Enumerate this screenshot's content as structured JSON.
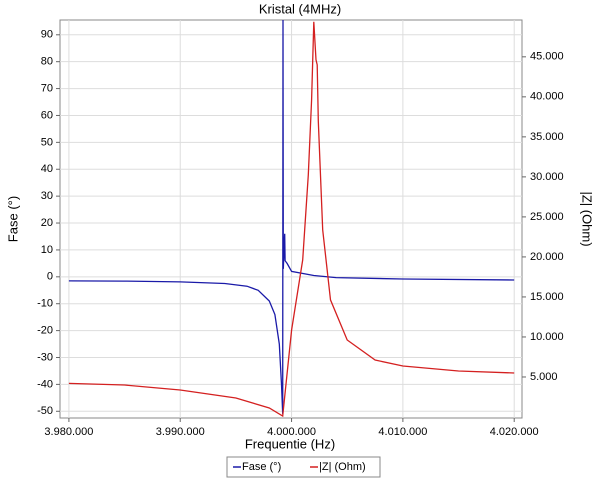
{
  "chart_data": {
    "type": "line",
    "title": "Kristal (4MHz)",
    "x_label": "Frequentie (Hz)",
    "y_label": "Fase (°)",
    "y2_label": "|Z| (Ohm)",
    "xlim": [
      3979200,
      4020700
    ],
    "xticks": [
      {
        "value": 3980000,
        "label": "3.980.000"
      },
      {
        "value": 3990000,
        "label": "3.990.000"
      },
      {
        "value": 4000000,
        "label": "4.000.000"
      },
      {
        "value": 4010000,
        "label": "4.010.000"
      },
      {
        "value": 4020000,
        "label": "4.020.000"
      }
    ],
    "ylim": [
      -52.5,
      95.5
    ],
    "yticks": [
      -50,
      -40,
      -30,
      -20,
      -10,
      0,
      10,
      20,
      30,
      40,
      50,
      60,
      70,
      80,
      90
    ],
    "y2lim": [
      -125,
      49600
    ],
    "y2ticks": [
      {
        "value": 5000,
        "label": "5.000"
      },
      {
        "value": 10000,
        "label": "10.000"
      },
      {
        "value": 15000,
        "label": "15.000"
      },
      {
        "value": 20000,
        "label": "20.000"
      },
      {
        "value": 25000,
        "label": "25.000"
      },
      {
        "value": 30000,
        "label": "30.000"
      },
      {
        "value": 35000,
        "label": "35.000"
      },
      {
        "value": 40000,
        "label": "40.000"
      },
      {
        "value": 45000,
        "label": "45.000"
      }
    ],
    "grid": true,
    "legend": "bottom",
    "series": [
      {
        "name": "Fase (°)",
        "color": "#1a1aa8",
        "x": [
          3980000,
          3985000,
          3990000,
          3994000,
          3996000,
          3997000,
          3998000,
          3998500,
          3998900,
          3999100,
          3999200,
          3999230,
          3999260,
          3999380,
          3999420,
          3999600,
          4000000,
          4002000,
          4004000,
          4010000,
          4020000
        ],
        "values": [
          -1.5,
          -1.6,
          -1.9,
          -2.5,
          -3.5,
          -5,
          -9,
          -14,
          -25,
          -40,
          -51,
          95.5,
          3,
          16,
          6,
          5,
          2,
          0.5,
          -0.3,
          -0.8,
          -1.2
        ]
      },
      {
        "name": "|Z| (Ohm)",
        "color": "#d42020",
        "axis": "y2",
        "x": [
          3980000,
          3985000,
          3990000,
          3995000,
          3998000,
          3999200,
          4000000,
          4001000,
          4001500,
          4001800,
          4002000,
          4002200,
          4002300,
          4002400,
          4002800,
          4003500,
          4005000,
          4007500,
          4010000,
          4015000,
          4020000
        ],
        "values": [
          4200,
          4000,
          3375,
          2375,
          1125,
          125,
          10875,
          19625,
          30250,
          39625,
          49375,
          44625,
          44000,
          37000,
          23375,
          14625,
          9625,
          7125,
          6375,
          5750,
          5500
        ]
      }
    ]
  }
}
